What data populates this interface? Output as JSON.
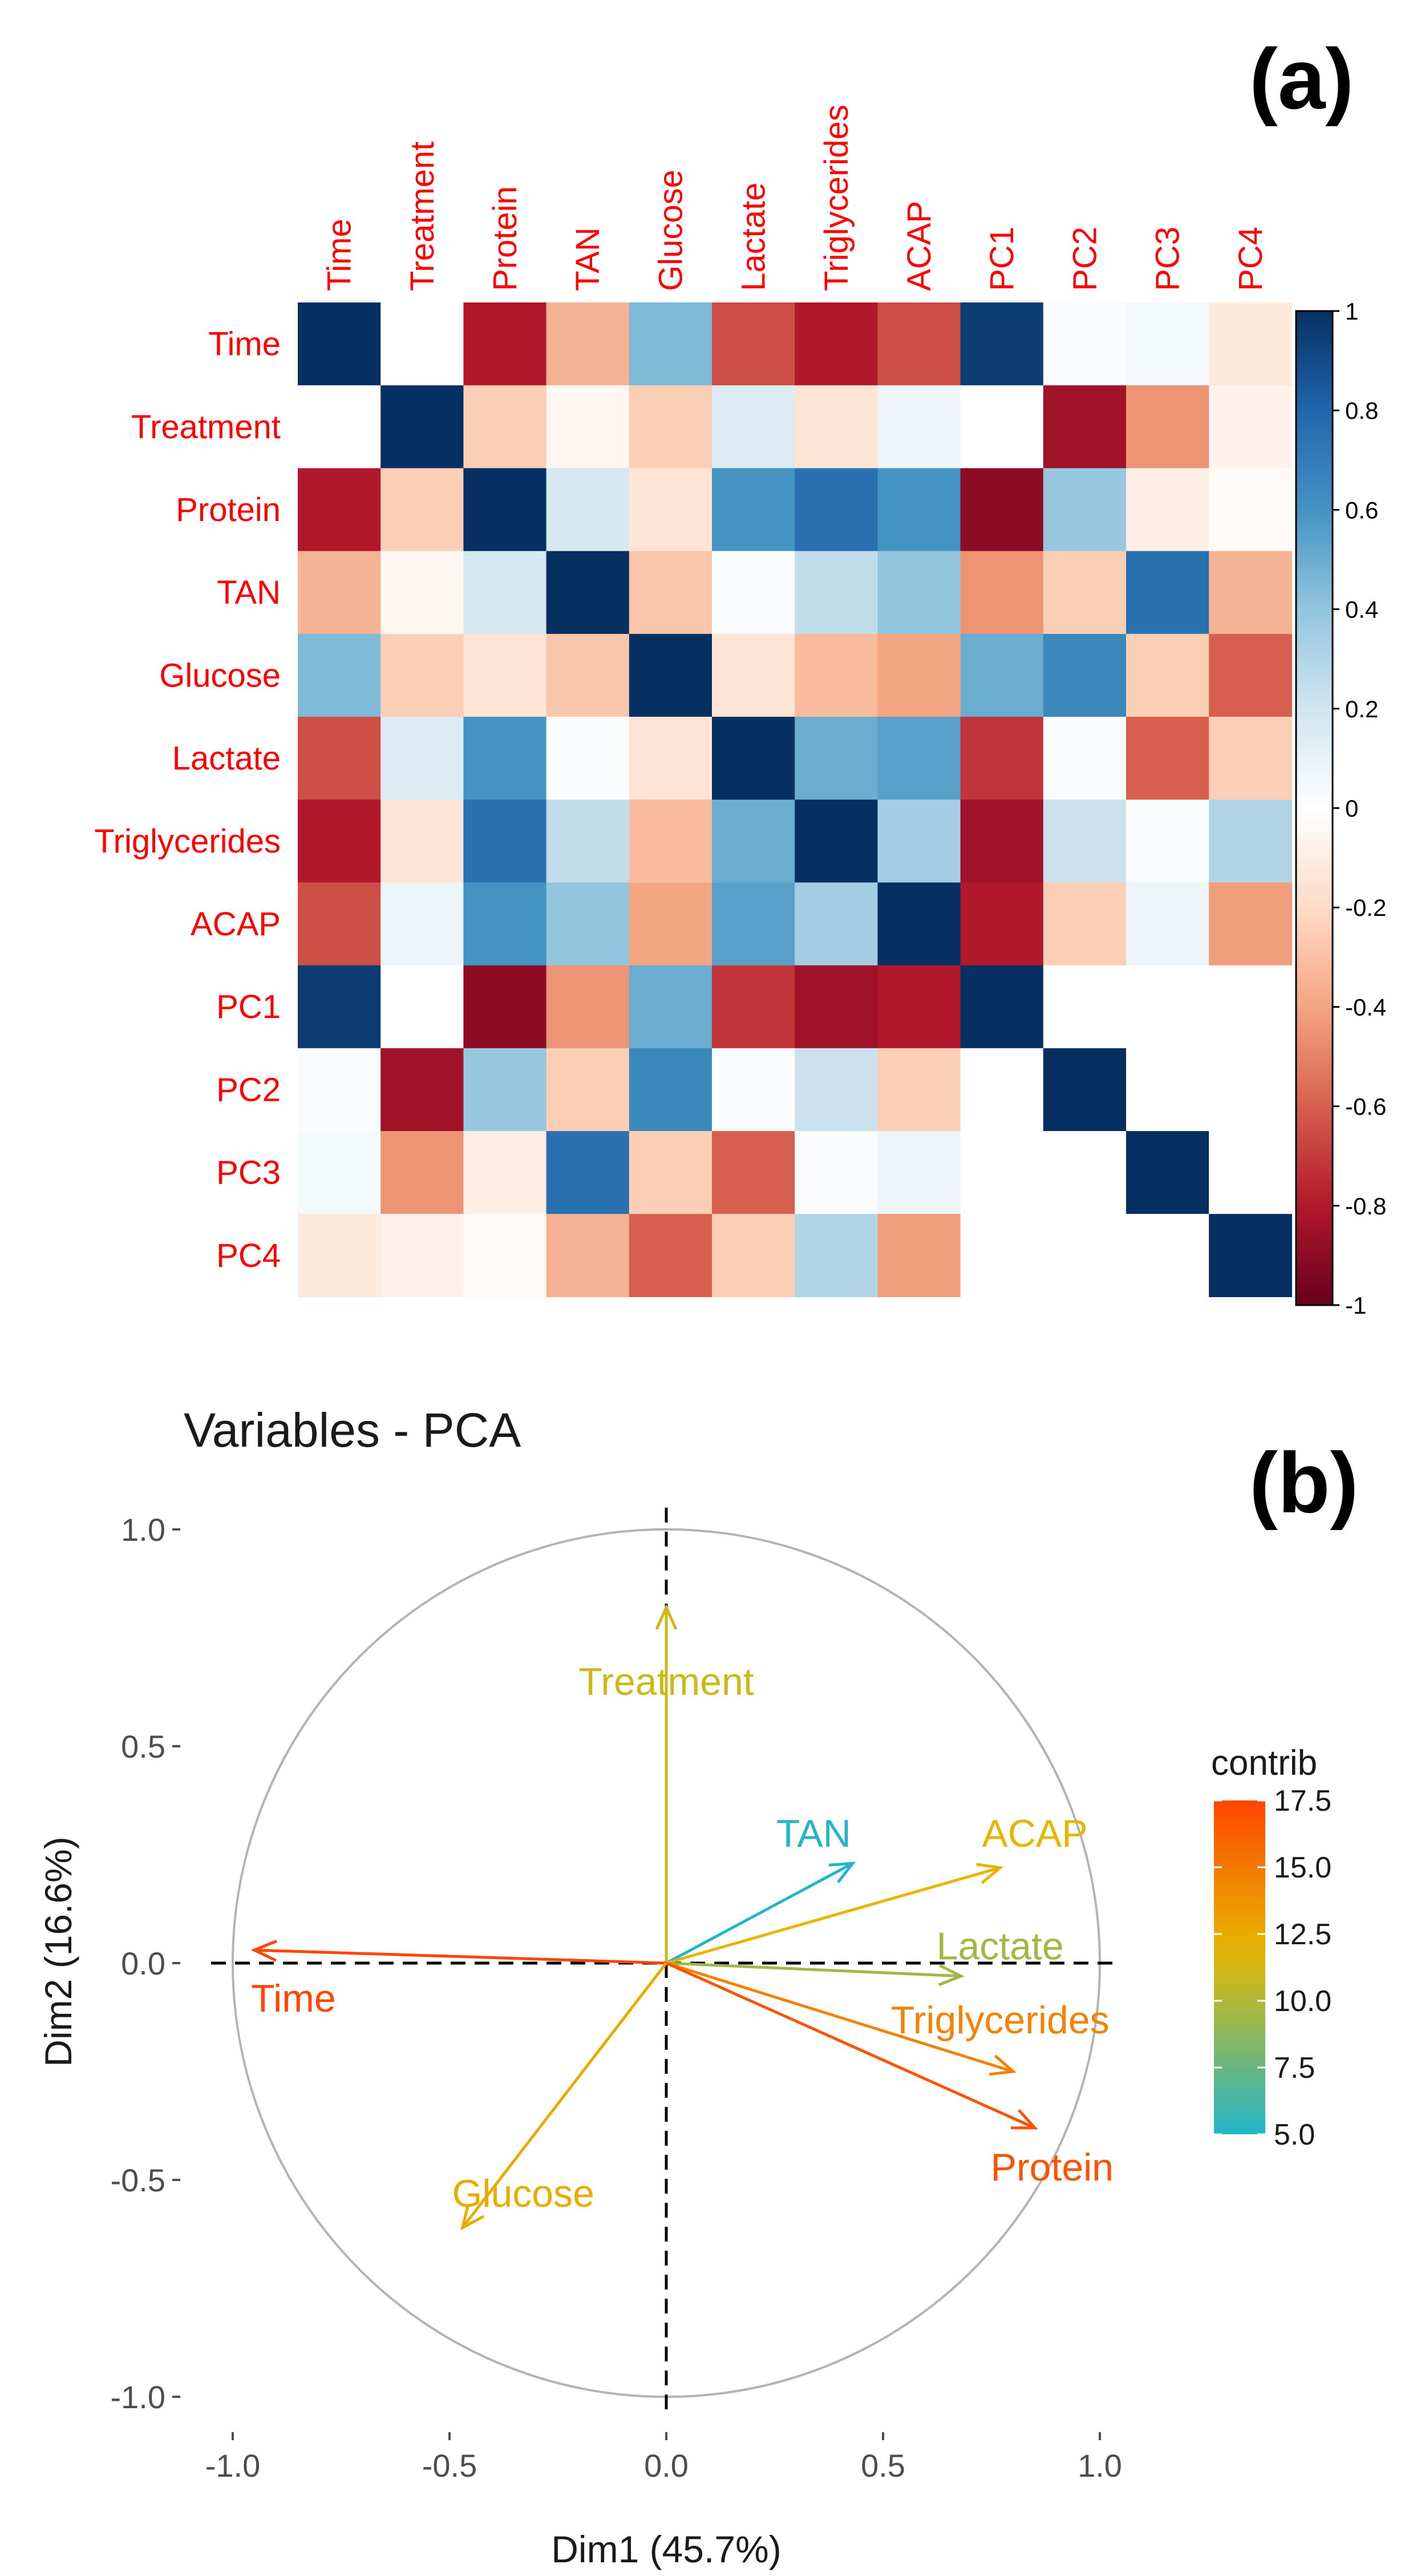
{
  "panel_a": {
    "label": "(a)"
  },
  "panel_b": {
    "label": "(b)"
  },
  "chart_data": [
    {
      "type": "heatmap",
      "variables": [
        "Time",
        "Treatment",
        "Protein",
        "TAN",
        "Glucose",
        "Lactate",
        "Triglycerides",
        "ACAP",
        "PC1",
        "PC2",
        "PC3",
        "PC4"
      ],
      "matrix": [
        [
          1,
          0,
          -0.8,
          -0.35,
          0.45,
          -0.65,
          -0.8,
          -0.65,
          0.95,
          0.02,
          0.05,
          -0.12
        ],
        [
          0,
          1,
          -0.25,
          -0.05,
          -0.25,
          0.15,
          -0.15,
          0.08,
          0,
          -0.85,
          -0.45,
          -0.07
        ],
        [
          -0.8,
          -0.25,
          1,
          0.18,
          -0.15,
          0.6,
          0.75,
          0.6,
          -0.9,
          0.38,
          -0.1,
          -0.03
        ],
        [
          -0.35,
          -0.05,
          0.18,
          1,
          -0.28,
          0.02,
          0.25,
          0.4,
          -0.45,
          -0.25,
          0.75,
          -0.35
        ],
        [
          0.45,
          -0.25,
          -0.15,
          -0.28,
          1,
          -0.15,
          -0.32,
          -0.4,
          0.5,
          0.65,
          -0.25,
          -0.6
        ],
        [
          -0.65,
          0.15,
          0.6,
          0.02,
          -0.15,
          1,
          0.5,
          0.55,
          -0.72,
          0.02,
          -0.6,
          -0.25
        ],
        [
          -0.8,
          -0.15,
          0.75,
          0.25,
          -0.32,
          0.5,
          1,
          0.35,
          -0.85,
          0.22,
          0.02,
          0.3
        ],
        [
          -0.65,
          0.08,
          0.6,
          0.4,
          -0.4,
          0.55,
          0.35,
          1,
          -0.8,
          -0.25,
          0.08,
          -0.42
        ],
        [
          0.95,
          0,
          -0.9,
          -0.45,
          0.5,
          -0.72,
          -0.85,
          -0.8,
          1,
          0,
          0,
          0
        ],
        [
          0.02,
          -0.85,
          0.38,
          -0.25,
          0.65,
          0.02,
          0.22,
          -0.25,
          0,
          1,
          0,
          0
        ],
        [
          0.05,
          -0.45,
          -0.1,
          0.75,
          -0.25,
          -0.6,
          0.02,
          0.08,
          0,
          0,
          1,
          0
        ],
        [
          -0.12,
          -0.07,
          -0.03,
          -0.35,
          -0.6,
          -0.25,
          0.3,
          -0.42,
          0,
          0,
          0,
          1
        ]
      ],
      "colorbar": {
        "min": -1,
        "max": 1,
        "ticks": [
          "1",
          "0.8",
          "0.6",
          "0.4",
          "0.2",
          "0",
          "-0.2",
          "-0.4",
          "-0.6",
          "-0.8",
          "-1"
        ]
      },
      "colors": {
        "neg": "#67001f",
        "mid": "#ffffff",
        "pos": "#053061",
        "label": "#ff0000"
      }
    },
    {
      "type": "scatter",
      "title": "Variables - PCA",
      "xlabel": "Dim1 (45.7%)",
      "ylabel": "Dim2 (16.6%)",
      "xlim": [
        -1.05,
        1.05
      ],
      "ylim": [
        -1.05,
        1.05
      ],
      "xticks": [
        "-1.0",
        "-0.5",
        "0.0",
        "0.5",
        "1.0"
      ],
      "yticks": [
        "1.0",
        "0.5",
        "0.0",
        "-0.5",
        "-1.0"
      ],
      "vectors": [
        {
          "name": "Treatment",
          "x": 0.0,
          "y": 0.82,
          "contrib": 11.0
        },
        {
          "name": "TAN",
          "x": 0.43,
          "y": 0.23,
          "contrib": 5.0
        },
        {
          "name": "ACAP",
          "x": 0.77,
          "y": 0.22,
          "contrib": 12.0
        },
        {
          "name": "Lactate",
          "x": 0.68,
          "y": -0.03,
          "contrib": 9.5
        },
        {
          "name": "Triglycerides",
          "x": 0.8,
          "y": -0.25,
          "contrib": 14.5
        },
        {
          "name": "Protein",
          "x": 0.85,
          "y": -0.38,
          "contrib": 16.8
        },
        {
          "name": "Time",
          "x": -0.95,
          "y": 0.03,
          "contrib": 17.5
        },
        {
          "name": "Glucose",
          "x": -0.47,
          "y": -0.61,
          "contrib": 12.5
        }
      ],
      "legend": {
        "title": "contrib",
        "min": 5.0,
        "max": 17.5,
        "ticks": [
          "17.5",
          "15.0",
          "12.5",
          "10.0",
          "7.5",
          "5.0"
        ]
      },
      "colors": {
        "low": "#22b5c9",
        "mid": "#e6b800",
        "high": "#ff4500",
        "circle": "#b3b3b3",
        "axis": "#000000"
      }
    }
  ]
}
